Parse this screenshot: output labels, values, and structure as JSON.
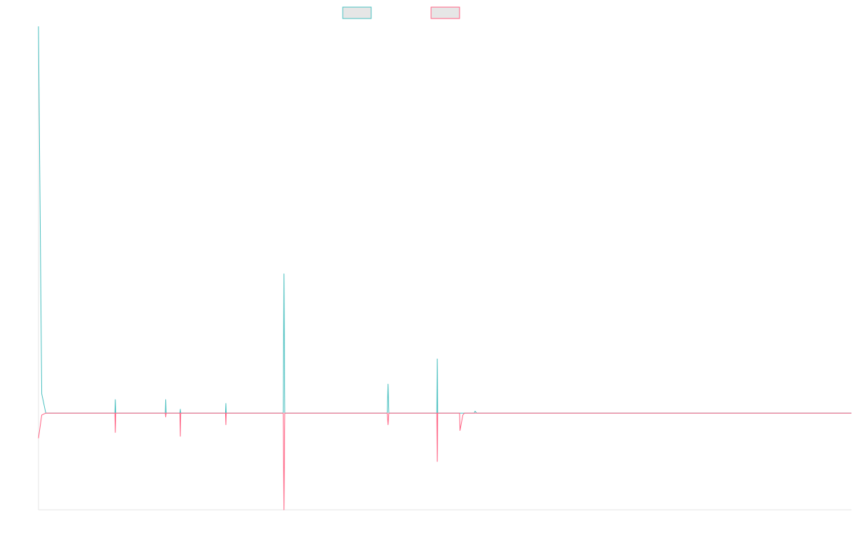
{
  "chart_data": {
    "type": "line",
    "title": "",
    "xlabel": "",
    "ylabel": "",
    "ylim": [
      -0.5,
      2.0
    ],
    "grid": false,
    "legend_placement": "top-center",
    "series": [
      {
        "name": "",
        "color": "#4bc0c0",
        "fill": "#e6e6e6",
        "points": [
          [
            0,
            2.0
          ],
          [
            0.004,
            0.1
          ],
          [
            0.009,
            0
          ],
          [
            0.094,
            0
          ],
          [
            0.0945,
            0.07
          ],
          [
            0.095,
            0
          ],
          [
            0.156,
            0
          ],
          [
            0.1565,
            0.07
          ],
          [
            0.157,
            0
          ],
          [
            0.174,
            0
          ],
          [
            0.1745,
            0.02
          ],
          [
            0.175,
            0
          ],
          [
            0.23,
            0
          ],
          [
            0.2305,
            0.05
          ],
          [
            0.231,
            0
          ],
          [
            0.301,
            0
          ],
          [
            0.302,
            0.72
          ],
          [
            0.303,
            0
          ],
          [
            0.429,
            0
          ],
          [
            0.43,
            0.15
          ],
          [
            0.431,
            0
          ],
          [
            0.49,
            0
          ],
          [
            0.4905,
            0.28
          ],
          [
            0.491,
            0
          ],
          [
            0.536,
            0
          ],
          [
            0.537,
            0.01
          ],
          [
            0.539,
            0
          ],
          [
            1.0,
            0
          ]
        ]
      },
      {
        "name": "",
        "color": "#ff6384",
        "fill": "#e6e6e6",
        "points": [
          [
            0,
            -0.13
          ],
          [
            0.004,
            -0.01
          ],
          [
            0.009,
            0
          ],
          [
            0.094,
            0
          ],
          [
            0.0945,
            -0.1
          ],
          [
            0.095,
            0
          ],
          [
            0.156,
            0
          ],
          [
            0.1565,
            -0.02
          ],
          [
            0.157,
            0
          ],
          [
            0.174,
            0
          ],
          [
            0.1745,
            -0.12
          ],
          [
            0.175,
            0
          ],
          [
            0.23,
            0
          ],
          [
            0.2305,
            -0.06
          ],
          [
            0.231,
            0
          ],
          [
            0.301,
            0
          ],
          [
            0.302,
            -0.5
          ],
          [
            0.303,
            0
          ],
          [
            0.429,
            0
          ],
          [
            0.43,
            -0.06
          ],
          [
            0.431,
            0
          ],
          [
            0.49,
            0
          ],
          [
            0.4905,
            -0.25
          ],
          [
            0.491,
            0
          ],
          [
            0.518,
            0
          ],
          [
            0.5185,
            -0.09
          ],
          [
            0.522,
            -0.01
          ],
          [
            0.524,
            0
          ],
          [
            1.0,
            0
          ]
        ]
      }
    ]
  }
}
